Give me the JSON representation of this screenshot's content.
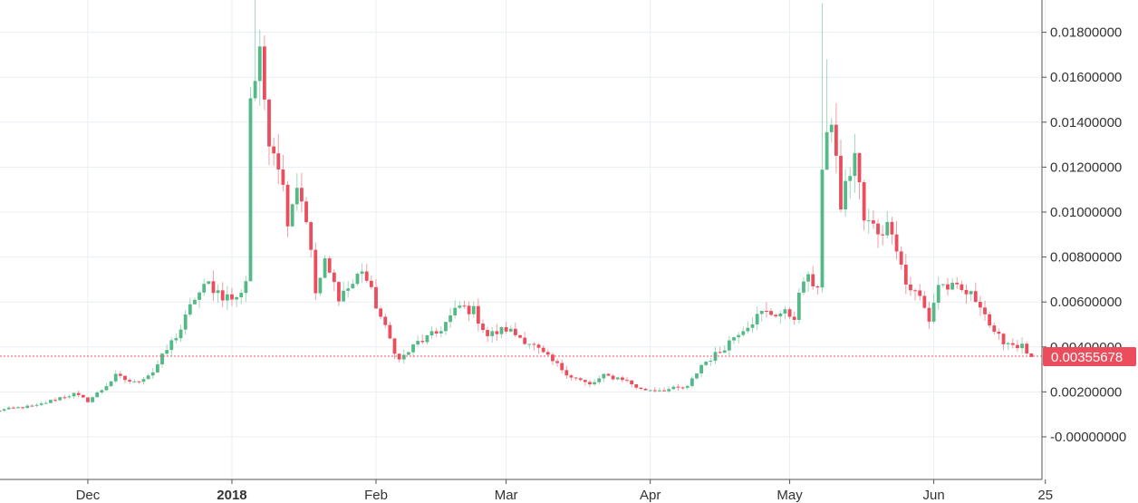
{
  "chart_data": {
    "type": "candlestick",
    "title": "",
    "xlabel": "",
    "ylabel": "",
    "ylim": [
      -0.0009,
      0.0195
    ],
    "grid": true,
    "x_tick_labels": [
      "Dec",
      "2018",
      "Feb",
      "Mar",
      "Apr",
      "May",
      "Jun",
      "25"
    ],
    "y_tick_labels": [
      "-0.00000000",
      "0.00200000",
      "0.00400000",
      "0.00600000",
      "0.00800000",
      "0.01000000",
      "0.01200000",
      "0.01400000",
      "0.01600000",
      "0.01800000"
    ],
    "y_ticks": [
      0,
      0.002,
      0.004,
      0.006,
      0.008,
      0.01,
      0.012,
      0.014,
      0.016,
      0.018
    ],
    "last_price_label": "0.00355678",
    "last_price": 0.00355678,
    "colors": {
      "up": "#53b987",
      "down": "#eb4d5c",
      "grid": "#e8eef3",
      "price_line": "#eb4d5c"
    },
    "anchors": [
      [
        "2017-11-11",
        0.00115
      ],
      [
        "2017-11-15",
        0.00128
      ],
      [
        "2017-11-20",
        0.00138
      ],
      [
        "2017-11-25",
        0.00175
      ],
      [
        "2017-11-28",
        0.0019
      ],
      [
        "2017-12-01",
        0.0016
      ],
      [
        "2017-12-04",
        0.0021
      ],
      [
        "2017-12-07",
        0.0027
      ],
      [
        "2017-12-11",
        0.0024
      ],
      [
        "2017-12-15",
        0.0029
      ],
      [
        "2017-12-19",
        0.0042
      ],
      [
        "2017-12-21",
        0.0048
      ],
      [
        "2017-12-24",
        0.0062
      ],
      [
        "2017-12-27",
        0.0068
      ],
      [
        "2017-12-30",
        0.0063
      ],
      [
        "2018-01-02",
        0.0061
      ],
      [
        "2018-01-04",
        0.007
      ],
      [
        "2018-01-05",
        0.0152
      ],
      [
        "2018-01-07",
        0.0167
      ],
      [
        "2018-01-09",
        0.0135
      ],
      [
        "2018-01-11",
        0.0123
      ],
      [
        "2018-01-13",
        0.0098
      ],
      [
        "2018-01-15",
        0.0113
      ],
      [
        "2018-01-17",
        0.0098
      ],
      [
        "2018-01-19",
        0.0064
      ],
      [
        "2018-01-21",
        0.0077
      ],
      [
        "2018-01-24",
        0.0063
      ],
      [
        "2018-01-27",
        0.0068
      ],
      [
        "2018-01-29",
        0.0075
      ],
      [
        "2018-01-31",
        0.0064
      ],
      [
        "2018-02-03",
        0.0048
      ],
      [
        "2018-02-06",
        0.0034
      ],
      [
        "2018-02-10",
        0.0042
      ],
      [
        "2018-02-14",
        0.0046
      ],
      [
        "2018-02-19",
        0.0058
      ],
      [
        "2018-02-22",
        0.0056
      ],
      [
        "2018-02-25",
        0.0045
      ],
      [
        "2018-03-01",
        0.0048
      ],
      [
        "2018-03-06",
        0.0042
      ],
      [
        "2018-03-10",
        0.0035
      ],
      [
        "2018-03-15",
        0.0027
      ],
      [
        "2018-03-19",
        0.0023
      ],
      [
        "2018-03-22",
        0.0027
      ],
      [
        "2018-03-26",
        0.0026
      ],
      [
        "2018-03-30",
        0.0021
      ],
      [
        "2018-04-04",
        0.0021
      ],
      [
        "2018-04-09",
        0.0022
      ],
      [
        "2018-04-12",
        0.0032
      ],
      [
        "2018-04-16",
        0.0038
      ],
      [
        "2018-04-20",
        0.0047
      ],
      [
        "2018-04-25",
        0.0055
      ],
      [
        "2018-04-29",
        0.0055
      ],
      [
        "2018-05-02",
        0.0054
      ],
      [
        "2018-05-04",
        0.007
      ],
      [
        "2018-05-07",
        0.0068
      ],
      [
        "2018-05-08",
        0.0118
      ],
      [
        "2018-05-10",
        0.0142
      ],
      [
        "2018-05-12",
        0.0103
      ],
      [
        "2018-05-15",
        0.0126
      ],
      [
        "2018-05-17",
        0.0096
      ],
      [
        "2018-05-20",
        0.0092
      ],
      [
        "2018-05-23",
        0.0094
      ],
      [
        "2018-05-26",
        0.0068
      ],
      [
        "2018-05-29",
        0.0062
      ],
      [
        "2018-05-31",
        0.0052
      ],
      [
        "2018-06-02",
        0.0068
      ],
      [
        "2018-06-05",
        0.0066
      ],
      [
        "2018-06-08",
        0.0064
      ],
      [
        "2018-06-11",
        0.006
      ],
      [
        "2018-06-14",
        0.0045
      ],
      [
        "2018-06-17",
        0.0042
      ],
      [
        "2018-06-20",
        0.004
      ],
      [
        "2018-06-22",
        0.00355678
      ]
    ]
  }
}
